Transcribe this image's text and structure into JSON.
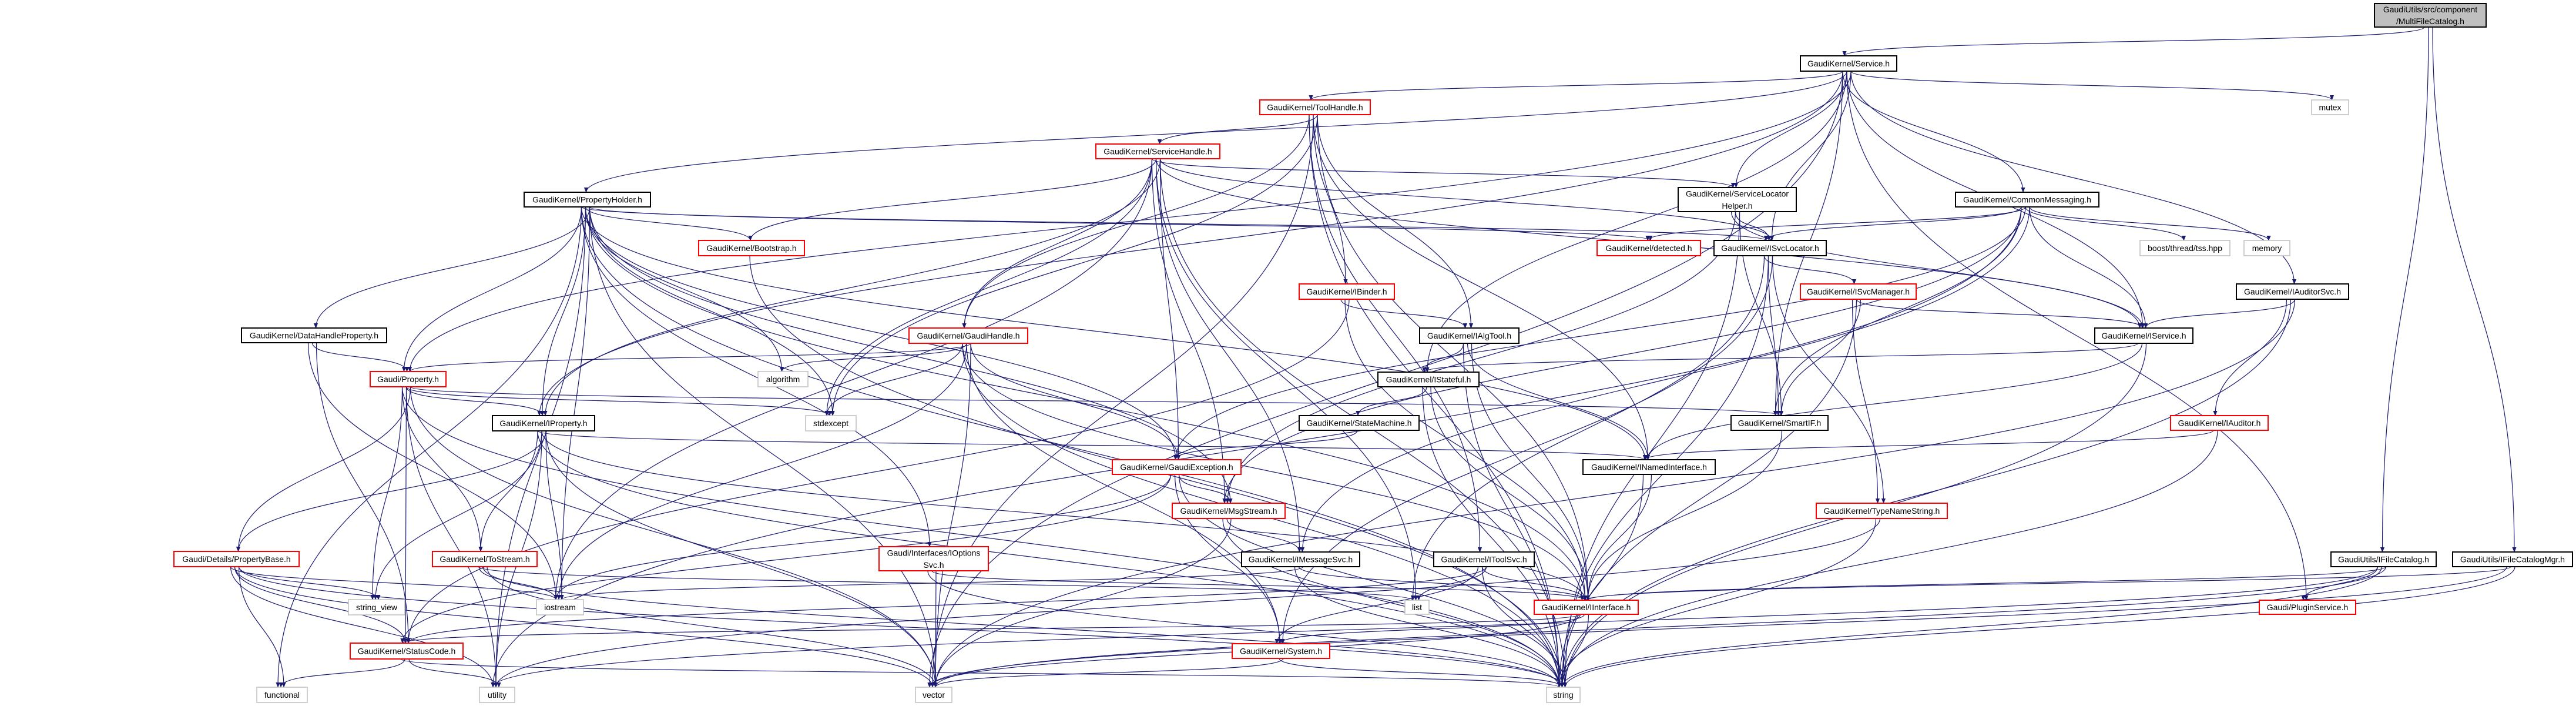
{
  "colors": {
    "edge": "#191970",
    "local_header_border": "#ff0000",
    "header_border": "#000000",
    "system_header_border": "#bfbfbf",
    "root_fill": "#bfbfbf"
  },
  "nodes": {
    "root": {
      "lines": [
        "GaudiUtils/src/component",
        "/MultiFileCatalog.h"
      ],
      "kind": "root"
    },
    "service": {
      "lines": [
        "GaudiKernel/Service.h"
      ],
      "kind": "header"
    },
    "toolhandle": {
      "lines": [
        "GaudiKernel/ToolHandle.h"
      ],
      "kind": "partial"
    },
    "mutex": {
      "lines": [
        "mutex"
      ],
      "kind": "system"
    },
    "servicehandle": {
      "lines": [
        "GaudiKernel/ServiceHandle.h"
      ],
      "kind": "partial"
    },
    "propertyholder": {
      "lines": [
        "GaudiKernel/PropertyHolder.h"
      ],
      "kind": "header"
    },
    "svclocatorhelper": {
      "lines": [
        "GaudiKernel/ServiceLocator",
        "Helper.h"
      ],
      "kind": "header"
    },
    "commonmessaging": {
      "lines": [
        "GaudiKernel/CommonMessaging.h"
      ],
      "kind": "header"
    },
    "bootstrap": {
      "lines": [
        "GaudiKernel/Bootstrap.h"
      ],
      "kind": "partial"
    },
    "detected": {
      "lines": [
        "GaudiKernel/detected.h"
      ],
      "kind": "partial"
    },
    "isvclocator": {
      "lines": [
        "GaudiKernel/ISvcLocator.h"
      ],
      "kind": "header"
    },
    "boosttss": {
      "lines": [
        "boost/thread/tss.hpp"
      ],
      "kind": "system"
    },
    "memory": {
      "lines": [
        "memory"
      ],
      "kind": "system"
    },
    "ibinder": {
      "lines": [
        "GaudiKernel/IBinder.h"
      ],
      "kind": "partial"
    },
    "isvcmanager": {
      "lines": [
        "GaudiKernel/ISvcManager.h"
      ],
      "kind": "partial"
    },
    "iauditorsvc": {
      "lines": [
        "GaudiKernel/IAuditorSvc.h"
      ],
      "kind": "header"
    },
    "datahandleproperty": {
      "lines": [
        "GaudiKernel/DataHandleProperty.h"
      ],
      "kind": "header"
    },
    "gaudihandle": {
      "lines": [
        "GaudiKernel/GaudiHandle.h"
      ],
      "kind": "partial"
    },
    "ialgtool": {
      "lines": [
        "GaudiKernel/IAlgTool.h"
      ],
      "kind": "header"
    },
    "iservice": {
      "lines": [
        "GaudiKernel/IService.h"
      ],
      "kind": "header"
    },
    "property": {
      "lines": [
        "Gaudi/Property.h"
      ],
      "kind": "partial"
    },
    "algorithm": {
      "lines": [
        "algorithm"
      ],
      "kind": "system"
    },
    "istateful": {
      "lines": [
        "GaudiKernel/IStateful.h"
      ],
      "kind": "header"
    },
    "iproperty": {
      "lines": [
        "GaudiKernel/IProperty.h"
      ],
      "kind": "header"
    },
    "stdexcept": {
      "lines": [
        "stdexcept"
      ],
      "kind": "system"
    },
    "statemachine": {
      "lines": [
        "GaudiKernel/StateMachine.h"
      ],
      "kind": "header"
    },
    "smartif": {
      "lines": [
        "GaudiKernel/SmartIF.h"
      ],
      "kind": "header"
    },
    "iauditor": {
      "lines": [
        "GaudiKernel/IAuditor.h"
      ],
      "kind": "partial"
    },
    "gaudiexception": {
      "lines": [
        "GaudiKernel/GaudiException.h"
      ],
      "kind": "partial"
    },
    "inamedinterface": {
      "lines": [
        "GaudiKernel/INamedInterface.h"
      ],
      "kind": "header"
    },
    "msgstream": {
      "lines": [
        "GaudiKernel/MsgStream.h"
      ],
      "kind": "partial"
    },
    "typenamestring": {
      "lines": [
        "GaudiKernel/TypeNameString.h"
      ],
      "kind": "partial"
    },
    "ioptionssvc": {
      "lines": [
        "Gaudi/Interfaces/IOptions",
        "Svc.h"
      ],
      "kind": "partial"
    },
    "propertybase": {
      "lines": [
        "Gaudi/Details/PropertyBase.h"
      ],
      "kind": "partial"
    },
    "tostream": {
      "lines": [
        "GaudiKernel/ToStream.h"
      ],
      "kind": "partial"
    },
    "imessagesvc": {
      "lines": [
        "GaudiKernel/IMessageSvc.h"
      ],
      "kind": "header"
    },
    "itoolsvc": {
      "lines": [
        "GaudiKernel/IToolSvc.h"
      ],
      "kind": "header"
    },
    "ifilecatalog": {
      "lines": [
        "GaudiUtils/IFileCatalog.h"
      ],
      "kind": "header"
    },
    "ifilecatalogmgr": {
      "lines": [
        "GaudiUtils/IFileCatalogMgr.h"
      ],
      "kind": "header"
    },
    "stringview": {
      "lines": [
        "string_view"
      ],
      "kind": "system"
    },
    "iostream": {
      "lines": [
        "iostream"
      ],
      "kind": "system"
    },
    "list": {
      "lines": [
        "list"
      ],
      "kind": "system"
    },
    "iinterface": {
      "lines": [
        "GaudiKernel/IInterface.h"
      ],
      "kind": "partial"
    },
    "pluginservice": {
      "lines": [
        "Gaudi/PluginService.h"
      ],
      "kind": "partial"
    },
    "statuscode": {
      "lines": [
        "GaudiKernel/StatusCode.h"
      ],
      "kind": "partial"
    },
    "system": {
      "lines": [
        "GaudiKernel/System.h"
      ],
      "kind": "partial"
    },
    "functional": {
      "lines": [
        "functional"
      ],
      "kind": "system"
    },
    "utility": {
      "lines": [
        "utility"
      ],
      "kind": "system"
    },
    "vector": {
      "lines": [
        "vector"
      ],
      "kind": "system"
    },
    "string": {
      "lines": [
        "string"
      ],
      "kind": "system"
    }
  },
  "edges": [
    [
      "root",
      "service"
    ],
    [
      "root",
      "ifilecatalog"
    ],
    [
      "root",
      "ifilecatalogmgr"
    ],
    [
      "service",
      "toolhandle"
    ],
    [
      "service",
      "propertyholder"
    ],
    [
      "service",
      "property"
    ],
    [
      "service",
      "iproperty"
    ],
    [
      "service",
      "svclocatorhelper"
    ],
    [
      "service",
      "isvclocator"
    ],
    [
      "service",
      "commonmessaging"
    ],
    [
      "service",
      "iservice"
    ],
    [
      "service",
      "iauditorsvc"
    ],
    [
      "service",
      "smartif"
    ],
    [
      "service",
      "istateful"
    ],
    [
      "service",
      "mutex"
    ],
    [
      "service",
      "vector"
    ],
    [
      "service",
      "pluginservice"
    ],
    [
      "toolhandle",
      "servicehandle"
    ],
    [
      "toolhandle",
      "gaudihandle"
    ],
    [
      "toolhandle",
      "ibinder"
    ],
    [
      "toolhandle",
      "ialgtool"
    ],
    [
      "toolhandle",
      "itoolsvc"
    ],
    [
      "toolhandle",
      "inamedinterface"
    ],
    [
      "toolhandle",
      "stdexcept"
    ],
    [
      "toolhandle",
      "string"
    ],
    [
      "toolhandle",
      "vector"
    ],
    [
      "toolhandle",
      "iinterface"
    ],
    [
      "servicehandle",
      "gaudihandle"
    ],
    [
      "servicehandle",
      "bootstrap"
    ],
    [
      "servicehandle",
      "isvclocator"
    ],
    [
      "servicehandle",
      "svclocatorhelper"
    ],
    [
      "servicehandle",
      "iservice"
    ],
    [
      "servicehandle",
      "gaudiexception"
    ],
    [
      "servicehandle",
      "msgstream"
    ],
    [
      "servicehandle",
      "imessagesvc"
    ],
    [
      "servicehandle",
      "iproperty"
    ],
    [
      "servicehandle",
      "stdexcept"
    ],
    [
      "servicehandle",
      "list"
    ],
    [
      "servicehandle",
      "string"
    ],
    [
      "servicehandle",
      "iostream"
    ],
    [
      "propertyholder",
      "bootstrap"
    ],
    [
      "propertyholder",
      "datahandleproperty"
    ],
    [
      "propertyholder",
      "property"
    ],
    [
      "propertyholder",
      "iproperty"
    ],
    [
      "propertyholder",
      "detected"
    ],
    [
      "propertyholder",
      "isvclocator"
    ],
    [
      "propertyholder",
      "algorithm"
    ],
    [
      "propertyholder",
      "stdexcept"
    ],
    [
      "propertyholder",
      "ioptionssvc"
    ],
    [
      "propertyholder",
      "gaudiexception"
    ],
    [
      "propertyholder",
      "msgstream"
    ],
    [
      "propertyholder",
      "inamedinterface"
    ],
    [
      "propertyholder",
      "iinterface"
    ],
    [
      "propertyholder",
      "iostream"
    ],
    [
      "propertyholder",
      "functional"
    ],
    [
      "propertyholder",
      "utility"
    ],
    [
      "propertyholder",
      "vector"
    ],
    [
      "propertyholder",
      "string"
    ],
    [
      "datahandleproperty",
      "property"
    ],
    [
      "datahandleproperty",
      "statuscode"
    ],
    [
      "datahandleproperty",
      "iostream"
    ],
    [
      "property",
      "iproperty"
    ],
    [
      "property",
      "propertybase"
    ],
    [
      "property",
      "tostream"
    ],
    [
      "property",
      "stdexcept"
    ],
    [
      "property",
      "smartif"
    ],
    [
      "property",
      "stringview"
    ],
    [
      "property",
      "utility"
    ],
    [
      "property",
      "vector"
    ],
    [
      "property",
      "string"
    ],
    [
      "property",
      "statuscode"
    ],
    [
      "iproperty",
      "propertybase"
    ],
    [
      "iproperty",
      "tostream"
    ],
    [
      "iproperty",
      "stringview"
    ],
    [
      "iproperty",
      "iostream"
    ],
    [
      "iproperty",
      "inamedinterface"
    ],
    [
      "iproperty",
      "iinterface"
    ],
    [
      "iproperty",
      "vector"
    ],
    [
      "iproperty",
      "string"
    ],
    [
      "iproperty",
      "utility"
    ],
    [
      "propertybase",
      "stringview"
    ],
    [
      "propertybase",
      "iostream"
    ],
    [
      "propertybase",
      "statuscode"
    ],
    [
      "propertybase",
      "functional"
    ],
    [
      "propertybase",
      "utility"
    ],
    [
      "propertybase",
      "vector"
    ],
    [
      "propertybase",
      "string"
    ],
    [
      "tostream",
      "iostream"
    ],
    [
      "tostream",
      "string"
    ],
    [
      "tostream",
      "vector"
    ],
    [
      "tostream",
      "list"
    ],
    [
      "statuscode",
      "functional"
    ],
    [
      "statuscode",
      "utility"
    ],
    [
      "statuscode",
      "string"
    ],
    [
      "bootstrap",
      "string"
    ],
    [
      "gaudihandle",
      "property"
    ],
    [
      "gaudihandle",
      "stdexcept"
    ],
    [
      "gaudihandle",
      "algorithm"
    ],
    [
      "gaudihandle",
      "gaudiexception"
    ],
    [
      "gaudihandle",
      "iinterface"
    ],
    [
      "gaudihandle",
      "system"
    ],
    [
      "gaudihandle",
      "vector"
    ],
    [
      "gaudihandle",
      "string"
    ],
    [
      "gaudihandle",
      "iostream"
    ],
    [
      "gaudiexception",
      "msgstream"
    ],
    [
      "gaudiexception",
      "statuscode"
    ],
    [
      "gaudiexception",
      "system"
    ],
    [
      "gaudiexception",
      "string"
    ],
    [
      "gaudiexception",
      "iostream"
    ],
    [
      "msgstream",
      "imessagesvc"
    ],
    [
      "msgstream",
      "vector"
    ],
    [
      "msgstream",
      "string"
    ],
    [
      "imessagesvc",
      "iinterface"
    ],
    [
      "imessagesvc",
      "iostream"
    ],
    [
      "imessagesvc",
      "string"
    ],
    [
      "ioptionssvc",
      "iinterface"
    ],
    [
      "ioptionssvc",
      "vector"
    ],
    [
      "ioptionssvc",
      "string"
    ],
    [
      "itoolsvc",
      "iinterface"
    ],
    [
      "itoolsvc",
      "list"
    ],
    [
      "itoolsvc",
      "system"
    ],
    [
      "itoolsvc",
      "string"
    ],
    [
      "itoolsvc",
      "statuscode"
    ],
    [
      "iinterface",
      "statuscode"
    ],
    [
      "iinterface",
      "system"
    ],
    [
      "iinterface",
      "string"
    ],
    [
      "iinterface",
      "vector"
    ],
    [
      "system",
      "string"
    ],
    [
      "system",
      "vector"
    ],
    [
      "ibinder",
      "ialgtool"
    ],
    [
      "ibinder",
      "iinterface"
    ],
    [
      "ibinder",
      "statuscode"
    ],
    [
      "ialgtool",
      "istateful"
    ],
    [
      "ialgtool",
      "inamedinterface"
    ],
    [
      "ialgtool",
      "iinterface"
    ],
    [
      "ialgtool",
      "string"
    ],
    [
      "istateful",
      "statemachine"
    ],
    [
      "istateful",
      "iinterface"
    ],
    [
      "istateful",
      "string"
    ],
    [
      "statemachine",
      "gaudiexception"
    ],
    [
      "inamedinterface",
      "iinterface"
    ],
    [
      "inamedinterface",
      "string"
    ],
    [
      "svclocatorhelper",
      "isvclocator"
    ],
    [
      "svclocatorhelper",
      "smartif"
    ],
    [
      "svclocatorhelper",
      "iservice"
    ],
    [
      "svclocatorhelper",
      "msgstream"
    ],
    [
      "svclocatorhelper",
      "string"
    ],
    [
      "isvclocator",
      "isvcmanager"
    ],
    [
      "isvclocator",
      "smartif"
    ],
    [
      "isvclocator",
      "typenamestring"
    ],
    [
      "isvclocator",
      "list"
    ],
    [
      "isvclocator",
      "string"
    ],
    [
      "isvclocator",
      "system"
    ],
    [
      "commonmessaging",
      "isvclocator"
    ],
    [
      "commonmessaging",
      "detected"
    ],
    [
      "commonmessaging",
      "iservice"
    ],
    [
      "commonmessaging",
      "smartif"
    ],
    [
      "commonmessaging",
      "boosttss"
    ],
    [
      "commonmessaging",
      "memory"
    ],
    [
      "commonmessaging",
      "msgstream"
    ],
    [
      "commonmessaging",
      "gaudiexception"
    ],
    [
      "commonmessaging",
      "imessagesvc"
    ],
    [
      "commonmessaging",
      "utility"
    ],
    [
      "isvcmanager",
      "iservice"
    ],
    [
      "isvcmanager",
      "smartif"
    ],
    [
      "isvcmanager",
      "typenamestring"
    ],
    [
      "isvcmanager",
      "string"
    ],
    [
      "iauditorsvc",
      "iservice"
    ],
    [
      "iauditorsvc",
      "iauditor"
    ],
    [
      "iauditorsvc",
      "string"
    ],
    [
      "iauditorsvc",
      "vector"
    ],
    [
      "iservice",
      "istateful"
    ],
    [
      "iservice",
      "inamedinterface"
    ],
    [
      "iservice",
      "string"
    ],
    [
      "iauditor",
      "inamedinterface"
    ],
    [
      "iauditor",
      "string"
    ],
    [
      "smartif",
      "iinterface"
    ],
    [
      "typenamestring",
      "string"
    ],
    [
      "typenamestring",
      "utility"
    ],
    [
      "ifilecatalog",
      "iinterface"
    ],
    [
      "ifilecatalog",
      "pluginservice"
    ],
    [
      "ifilecatalog",
      "string"
    ],
    [
      "ifilecatalog",
      "vector"
    ],
    [
      "ifilecatalog",
      "utility"
    ],
    [
      "ifilecatalogmgr",
      "iinterface"
    ],
    [
      "ifilecatalogmgr",
      "string"
    ],
    [
      "ifilecatalogmgr",
      "vector"
    ]
  ]
}
